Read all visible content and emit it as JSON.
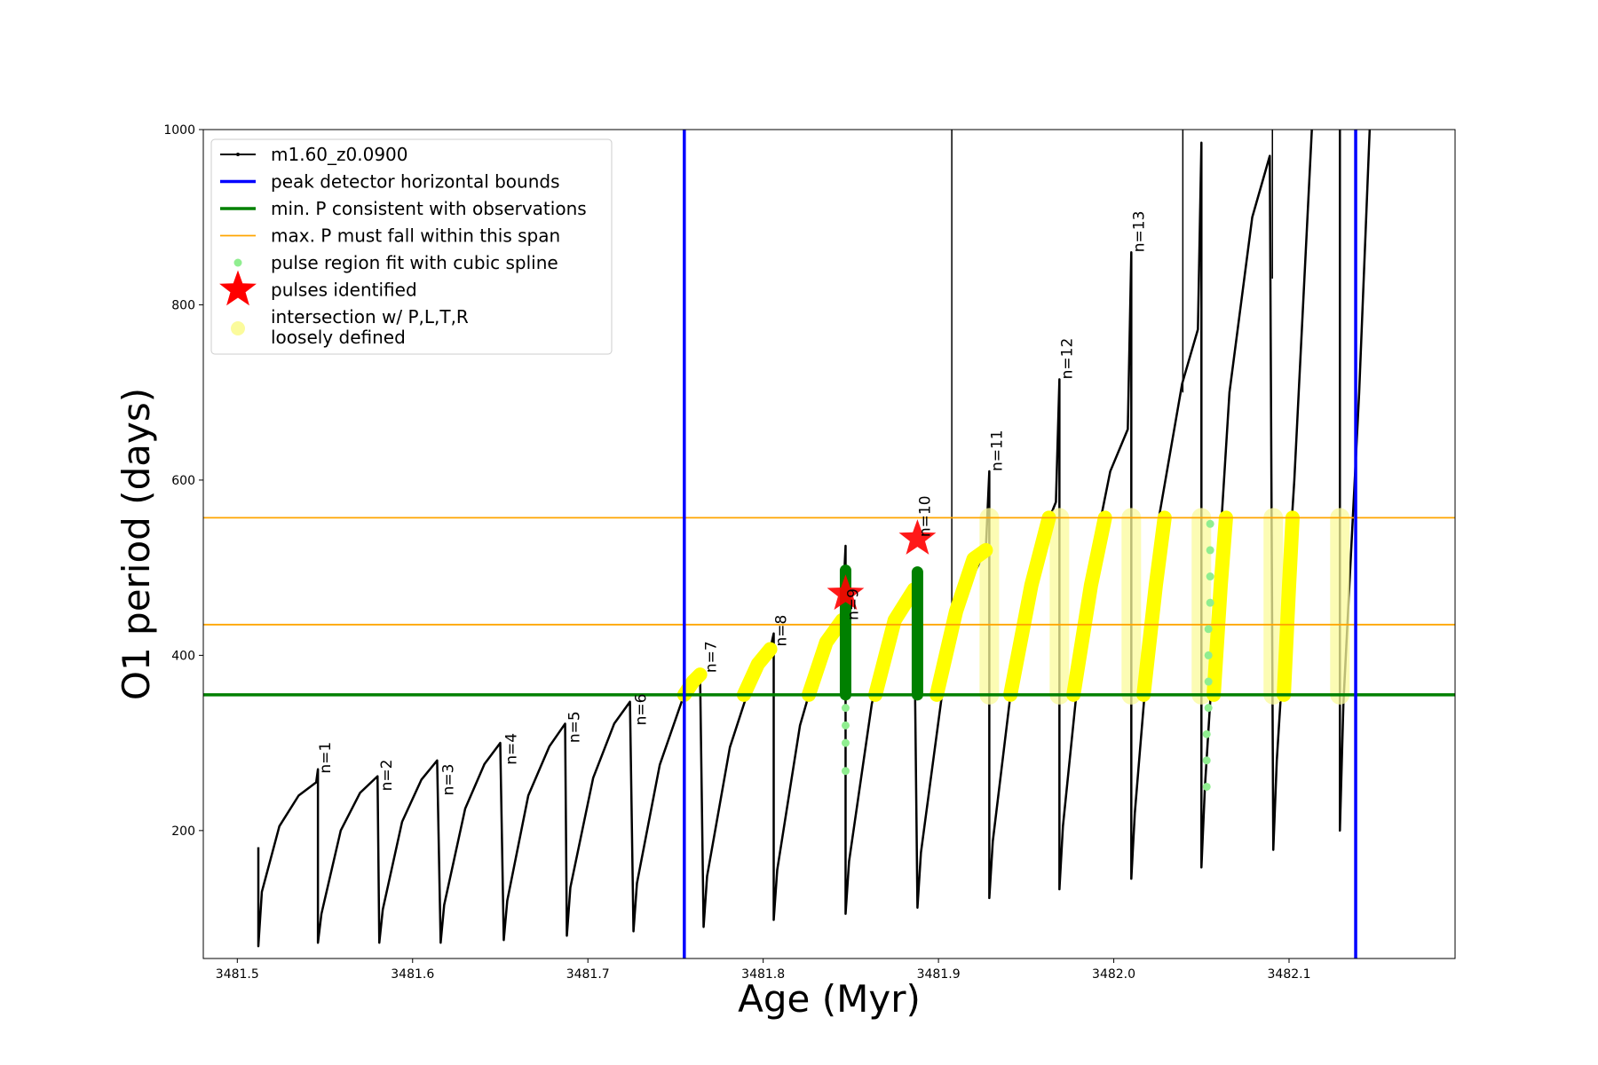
{
  "chart_data": {
    "type": "line",
    "xlabel": "Age (Myr)",
    "ylabel": "O1 period (days)",
    "xlim": [
      3481.4806,
      3482.1947
    ],
    "ylim": [
      54,
      1000
    ],
    "xticks": [
      3481.5,
      3481.6,
      3481.7,
      3481.8,
      3481.9,
      {
        "value": 3482,
        "label": "3482.0"
      },
      3482.1
    ],
    "yticks": [
      200,
      400,
      600,
      800,
      1000
    ],
    "legend": "upper left",
    "series": [
      {
        "name": "m1.60_z0.0900",
        "kind": "line",
        "color": "#000000",
        "x": [
          3481.512,
          3481.512,
          3481.514,
          3481.524,
          3481.535,
          3481.545,
          3481.546,
          3481.546,
          3481.548,
          3481.559,
          3481.57,
          3481.58,
          3481.581,
          3481.583,
          3481.594,
          3481.605,
          3481.614,
          3481.616,
          3481.618,
          3481.63,
          3481.641,
          3481.65,
          3481.652,
          3481.654,
          3481.666,
          3481.678,
          3481.687,
          3481.688,
          3481.69,
          3481.703,
          3481.715,
          3481.724,
          3481.726,
          3481.728,
          3481.741,
          3481.754,
          3481.764,
          3481.766,
          3481.768,
          3481.781,
          3481.794,
          3481.804,
          3481.806,
          3481.806,
          3481.808,
          3481.821,
          3481.834,
          3481.845,
          3481.847,
          3481.847,
          3481.849,
          3481.862,
          3481.875,
          3481.886,
          3481.888,
          3481.89,
          3481.904,
          3481.917,
          3481.927,
          3481.929,
          3481.929,
          3481.931,
          3481.945,
          3481.958,
          3481.967,
          3481.969,
          3481.969,
          3481.971,
          3481.985,
          3481.998,
          3482.008,
          3482.01,
          3482.01,
          3482.012,
          3482.026,
          3482.039,
          3482.048,
          3482.05,
          3482.05,
          3482.052,
          3482.066,
          3482.079,
          3482.089,
          3482.091,
          3482.093,
          3482.103,
          3482.113,
          3482.12,
          3482.129,
          3482.129,
          3482.131,
          3482.14,
          3482.146
        ],
        "values": [
          181,
          68,
          130,
          205,
          240,
          255,
          270,
          72,
          105,
          200,
          243,
          262,
          72,
          110,
          210,
          258,
          280,
          72,
          115,
          225,
          276,
          300,
          75,
          120,
          240,
          296,
          322,
          80,
          135,
          260,
          322,
          347,
          85,
          140,
          275,
          350,
          378,
          90,
          148,
          295,
          375,
          407,
          425,
          98,
          155,
          320,
          410,
          440,
          525,
          105,
          165,
          345,
          440,
          475,
          112,
          175,
          385,
          480,
          520,
          610,
          123,
          188,
          420,
          530,
          575,
          715,
          133,
          205,
          480,
          610,
          658,
          860,
          145,
          220,
          560,
          710,
          772,
          985,
          158,
          250,
          700,
          900,
          970,
          178,
          280,
          600,
          1000,
          null,
          1000,
          200,
          345,
          700,
          1000
        ]
      },
      {
        "name": "peak detector horizontal bounds",
        "kind": "vline",
        "color": "#0000ff",
        "x": [
          3481.755,
          3482.138
        ]
      },
      {
        "name": "min. P consistent with observations",
        "kind": "hline",
        "color": "#008000",
        "values": [
          355
        ]
      },
      {
        "name": "max. P must fall within this span",
        "kind": "span",
        "color": "#ffa500",
        "values": [
          435,
          557
        ]
      },
      {
        "name": "pulse region fit with cubic spline",
        "kind": "scatter",
        "color": "#90ee90",
        "x": [
          3481.847,
          3481.847,
          3481.847,
          3481.847,
          3482.053,
          3482.053,
          3482.053,
          3482.054,
          3482.054,
          3482.054,
          3482.054,
          3482.055,
          3482.055,
          3482.055,
          3482.055
        ],
        "values": [
          268,
          300,
          320,
          340,
          250,
          280,
          310,
          340,
          370,
          400,
          430,
          460,
          490,
          520,
          550
        ]
      },
      {
        "name": "pulses identified",
        "kind": "star",
        "color": "#ff0000",
        "x": [
          3481.847,
          3481.888
        ],
        "values": [
          470,
          533
        ]
      },
      {
        "name": [
          "intersection w/ P,L,T,R",
          "loosely defined"
        ],
        "kind": "band",
        "color": "#fbfb9c",
        "x": [
          3481.929,
          3481.969,
          3482.01,
          3482.05,
          3482.091,
          3482.129
        ],
        "low": [
          355,
          355,
          355,
          355,
          355,
          355
        ],
        "high": [
          557,
          557,
          557,
          557,
          557,
          557
        ]
      }
    ],
    "overlays": [
      {
        "kind": "rule",
        "color": "#000000",
        "x": [
          3481.9076,
          3482.0394,
          3482.0905
        ],
        "low": [
          435,
          700,
          830
        ],
        "high": [
          1000,
          1000,
          1000
        ]
      },
      {
        "kind": "highlight",
        "color": "#ffff00",
        "pieces": [
          {
            "x": [
              3481.755,
              3481.76,
              3481.764
            ],
            "values": [
              355,
              370,
              378
            ]
          },
          {
            "x": [
              3481.789,
              3481.797,
              3481.804
            ],
            "values": [
              355,
              390,
              407
            ]
          },
          {
            "x": [
              3481.826,
              3481.836,
              3481.845
            ],
            "values": [
              355,
              415,
              440
            ]
          },
          {
            "x": [
              3481.864,
              3481.875,
              3481.886
            ],
            "values": [
              355,
              440,
              475
            ]
          },
          {
            "x": [
              3481.899,
              3481.91,
              3481.92,
              3481.927
            ],
            "values": [
              355,
              450,
              510,
              520
            ]
          },
          {
            "x": [
              3481.941,
              3481.953,
              3481.963
            ],
            "values": [
              355,
              480,
              557
            ]
          },
          {
            "x": [
              3481.977,
              3481.987,
              3481.995
            ],
            "values": [
              355,
              480,
              557
            ]
          },
          {
            "x": [
              3482.017,
              3482.024,
              3482.029
            ],
            "values": [
              355,
              480,
              557
            ]
          },
          {
            "x": [
              3482.057,
              3482.061,
              3482.064
            ],
            "values": [
              355,
              480,
              557
            ]
          },
          {
            "x": [
              3482.097,
              3482.1,
              3482.102
            ],
            "values": [
              355,
              480,
              557
            ]
          }
        ]
      },
      {
        "kind": "segment",
        "color": "#008000",
        "x": [
          3481.847,
          3481.888
        ],
        "low": [
          355,
          355
        ],
        "high": [
          497,
          495
        ]
      }
    ],
    "pulse_labels": [
      {
        "text": "n=1",
        "x": 3481.546,
        "y": 265
      },
      {
        "text": "n=2",
        "x": 3481.581,
        "y": 245
      },
      {
        "text": "n=3",
        "x": 3481.616,
        "y": 240
      },
      {
        "text": "n=4",
        "x": 3481.652,
        "y": 275
      },
      {
        "text": "n=5",
        "x": 3481.688,
        "y": 300
      },
      {
        "text": "n=6",
        "x": 3481.726,
        "y": 320
      },
      {
        "text": "n=7",
        "x": 3481.766,
        "y": 380
      },
      {
        "text": "n=8",
        "x": 3481.806,
        "y": 410
      },
      {
        "text": "n=9",
        "x": 3481.847,
        "y": 440
      },
      {
        "text": "n=10",
        "x": 3481.888,
        "y": 535
      },
      {
        "text": "n=11",
        "x": 3481.929,
        "y": 610
      },
      {
        "text": "n=12",
        "x": 3481.969,
        "y": 715
      },
      {
        "text": "n=13",
        "x": 3482.01,
        "y": 860
      }
    ]
  }
}
